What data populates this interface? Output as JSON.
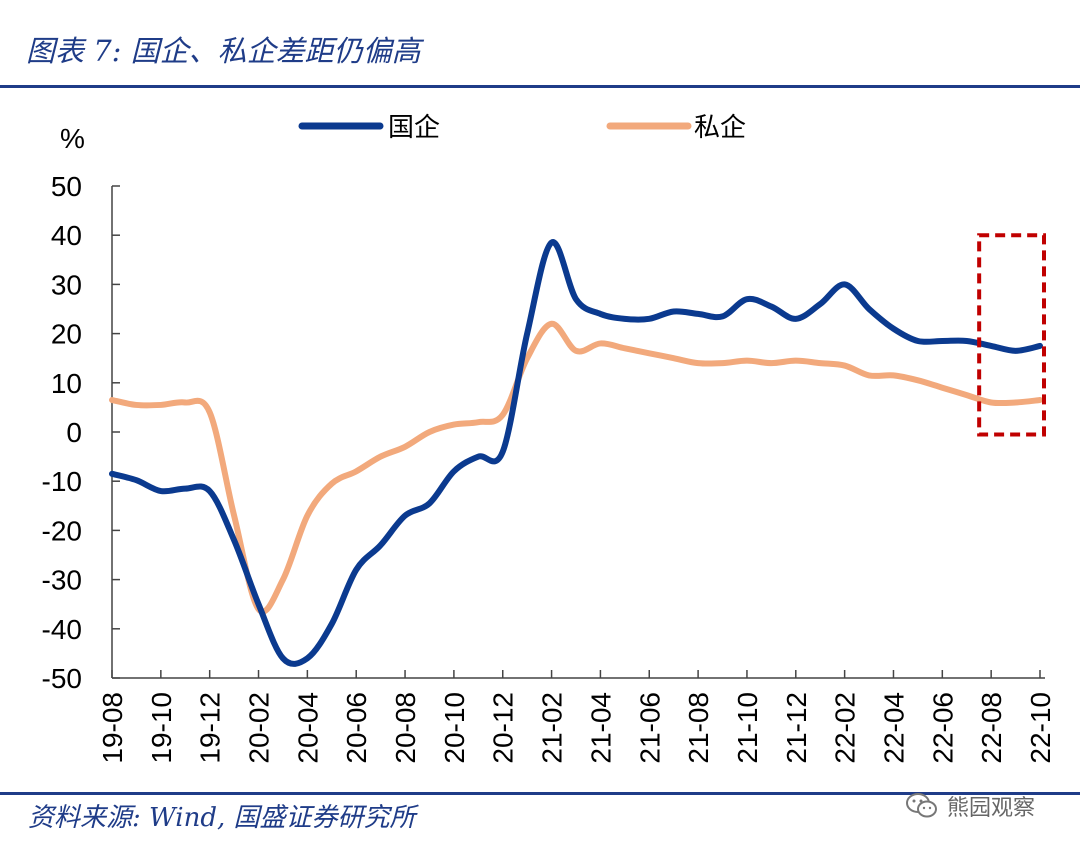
{
  "header": {
    "title": "图表 7:  国企、私企差距仍偏高"
  },
  "footer": {
    "source": "资料来源:  Wind,  国盛证券研究所",
    "watermark": "熊园观察"
  },
  "colors": {
    "accent": "#1f3c88",
    "soe": "#0b3a8f",
    "private": "#f2a97c",
    "highlight_box": "#c00000"
  },
  "chart_data": {
    "type": "line",
    "unit": "%",
    "ylim": [
      -50,
      50
    ],
    "yticks": [
      50,
      40,
      30,
      20,
      10,
      0,
      -10,
      -20,
      -30,
      -40,
      -50
    ],
    "x_tick_labels": [
      "19-08",
      "19-10",
      "19-12",
      "20-02",
      "20-04",
      "20-06",
      "20-08",
      "20-10",
      "20-12",
      "21-02",
      "21-04",
      "21-06",
      "21-08",
      "21-10",
      "21-12",
      "22-02",
      "22-04",
      "22-06",
      "22-08",
      "22-10"
    ],
    "legend_position": "top",
    "grid": false,
    "highlight_range": [
      "22-08",
      "22-10"
    ],
    "series": [
      {
        "name": "国企",
        "x": [
          "19-08",
          "19-09",
          "19-10",
          "19-11",
          "19-12",
          "20-01",
          "20-02",
          "20-03",
          "20-04",
          "20-05",
          "20-06",
          "20-07",
          "20-08",
          "20-09",
          "20-10",
          "20-11",
          "20-12",
          "21-01",
          "21-02",
          "21-03",
          "21-04",
          "21-05",
          "21-06",
          "21-07",
          "21-08",
          "21-09",
          "21-10",
          "21-11",
          "21-12",
          "22-01",
          "22-02",
          "22-03",
          "22-04",
          "22-05",
          "22-06",
          "22-07",
          "22-08",
          "22-09",
          "22-10"
        ],
        "values": [
          -8.5,
          -9.8,
          -12.0,
          -11.5,
          -12.0,
          -22.0,
          -35.0,
          -46.0,
          -46.0,
          -39.0,
          -28.0,
          -23.0,
          -17.0,
          -14.5,
          -8.0,
          -5.0,
          -4.0,
          20.0,
          38.5,
          27.0,
          24.0,
          23.0,
          23.0,
          24.5,
          24.0,
          23.5,
          27.0,
          25.5,
          23.0,
          26.0,
          30.0,
          25.0,
          21.0,
          18.5,
          18.5,
          18.5,
          17.5,
          16.5,
          17.5
        ]
      },
      {
        "name": "私企",
        "x": [
          "19-08",
          "19-09",
          "19-10",
          "19-11",
          "19-12",
          "20-01",
          "20-02",
          "20-03",
          "20-04",
          "20-05",
          "20-06",
          "20-07",
          "20-08",
          "20-09",
          "20-10",
          "20-11",
          "20-12",
          "21-01",
          "21-02",
          "21-03",
          "21-04",
          "21-05",
          "21-06",
          "21-07",
          "21-08",
          "21-09",
          "21-10",
          "21-11",
          "21-12",
          "22-01",
          "22-02",
          "22-03",
          "22-04",
          "22-05",
          "22-06",
          "22-07",
          "22-08",
          "22-09",
          "22-10"
        ],
        "values": [
          6.5,
          5.5,
          5.5,
          6.0,
          4.0,
          -17.0,
          -36.0,
          -30.0,
          -17.0,
          -10.5,
          -8.0,
          -5.0,
          -3.0,
          0.0,
          1.5,
          2.0,
          3.5,
          15.0,
          22.0,
          16.5,
          18.0,
          17.0,
          16.0,
          15.0,
          14.0,
          14.0,
          14.5,
          14.0,
          14.5,
          14.0,
          13.5,
          11.5,
          11.5,
          10.5,
          9.0,
          7.5,
          6.0,
          6.0,
          6.5
        ]
      }
    ]
  }
}
